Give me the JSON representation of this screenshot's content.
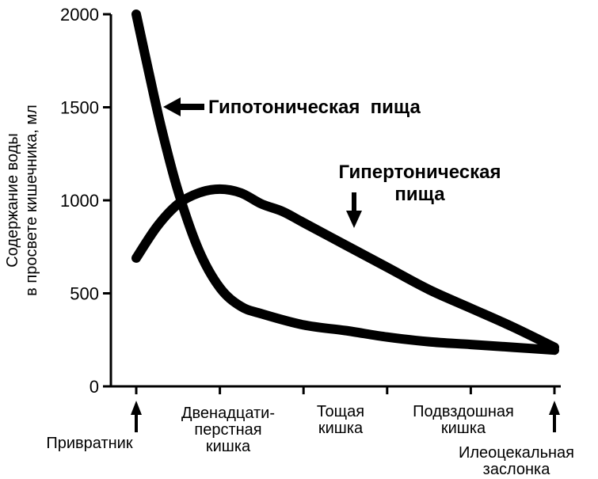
{
  "chart_data": {
    "type": "line",
    "ylabel_lines": [
      "Содержание воды",
      "в просвете кишечника, мл"
    ],
    "ylim": [
      0,
      2000
    ],
    "y_ticks": [
      "0",
      "500",
      "1000",
      "1500",
      "2000"
    ],
    "y_tick_values": [
      0,
      500,
      1000,
      1500,
      2000
    ],
    "x_segments": [
      {
        "name": "Привратник",
        "lines": [
          "Привратник"
        ]
      },
      {
        "name": "Двенадцатиперстная кишка",
        "lines": [
          "Двенадцати-",
          "перстная",
          "кишка"
        ]
      },
      {
        "name": "Тощая кишка",
        "lines": [
          "Тощая",
          "кишка"
        ]
      },
      {
        "name": "Подвздошная кишка",
        "lines": [
          "Подвздошная",
          "кишка"
        ]
      },
      {
        "name": "Илеоцекальная заслонка",
        "lines": [
          "Илеоцекальная",
          "заслонка"
        ]
      }
    ],
    "grid": false,
    "series": [
      {
        "name": "Гипотоническая пища",
        "label_lines": [
          "Гипотоническая  пища"
        ],
        "x": [
          0,
          0.03,
          0.06,
          0.1,
          0.15,
          0.2,
          0.25,
          0.3,
          0.4,
          0.5,
          0.6,
          0.7,
          0.8,
          0.9,
          1.0
        ],
        "y": [
          2000,
          1690,
          1390,
          1050,
          730,
          530,
          430,
          390,
          330,
          300,
          265,
          240,
          225,
          210,
          195
        ]
      },
      {
        "name": "Гипертоническая пища",
        "label_lines": [
          "Гипертоническая",
          "пища"
        ],
        "x": [
          0,
          0.05,
          0.1,
          0.15,
          0.2,
          0.25,
          0.3,
          0.35,
          0.4,
          0.5,
          0.6,
          0.7,
          0.8,
          0.9,
          1.0
        ],
        "y": [
          690,
          860,
          980,
          1040,
          1060,
          1040,
          980,
          940,
          880,
          760,
          640,
          520,
          420,
          320,
          210
        ]
      }
    ]
  }
}
